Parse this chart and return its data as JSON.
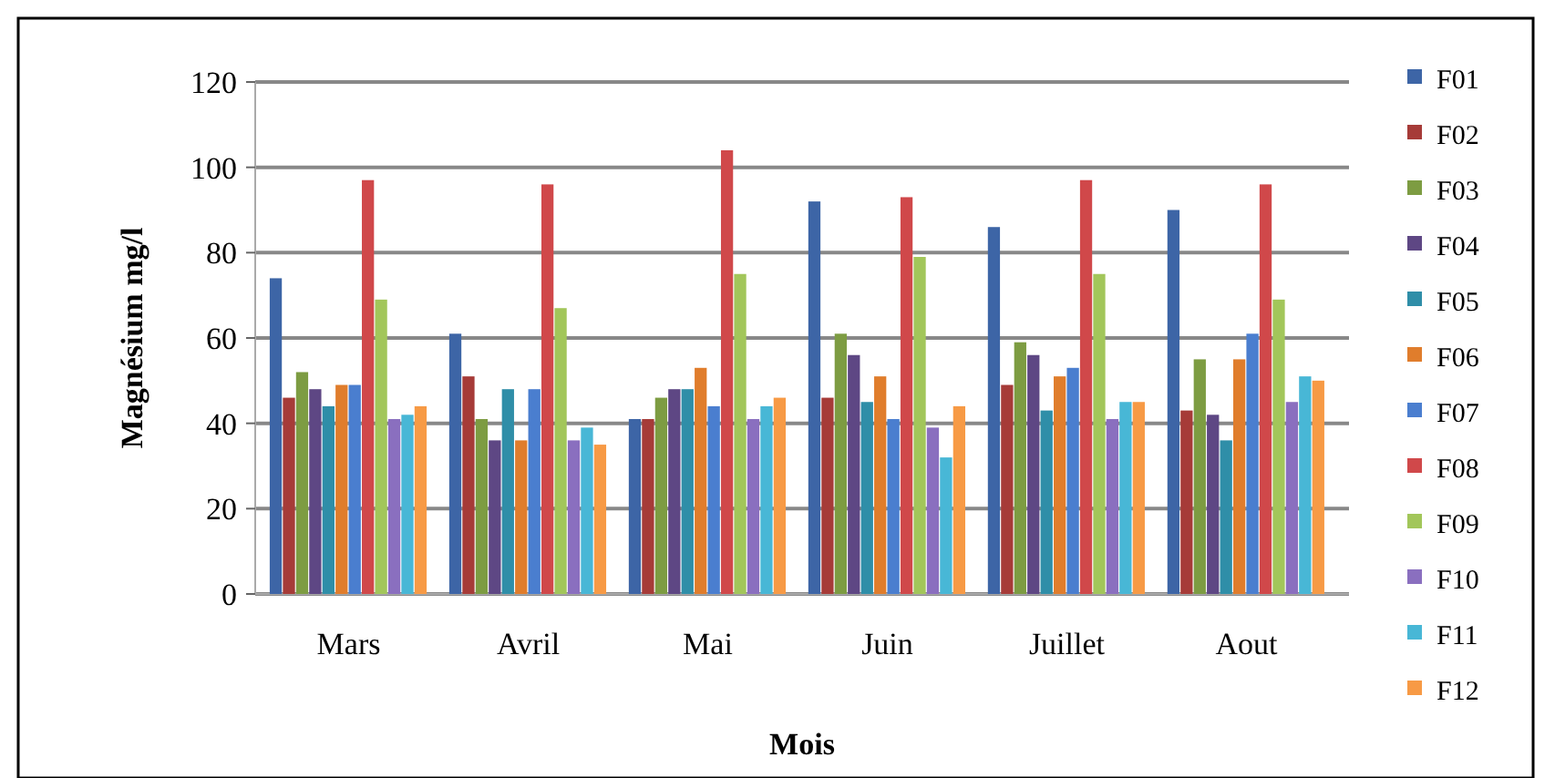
{
  "chart_data": {
    "type": "bar",
    "xlabel": "Mois",
    "ylabel": "Magnésium mg/l",
    "categories": [
      "Mars",
      "Avril",
      "Mai",
      "Juin",
      "Juillet",
      "Aout"
    ],
    "series": [
      {
        "name": "F01",
        "color": "#3d65a6",
        "values": [
          74,
          61,
          41,
          92,
          86,
          90
        ]
      },
      {
        "name": "F02",
        "color": "#a63b38",
        "values": [
          46,
          51,
          41,
          46,
          49,
          43
        ]
      },
      {
        "name": "F03",
        "color": "#7d9c42",
        "values": [
          52,
          41,
          46,
          61,
          59,
          55
        ]
      },
      {
        "name": "F04",
        "color": "#5e4784",
        "values": [
          48,
          36,
          48,
          56,
          56,
          42
        ]
      },
      {
        "name": "F05",
        "color": "#2f8ea8",
        "values": [
          44,
          48,
          48,
          45,
          43,
          36
        ]
      },
      {
        "name": "F06",
        "color": "#e07d2c",
        "values": [
          49,
          36,
          53,
          51,
          51,
          55
        ]
      },
      {
        "name": "F07",
        "color": "#4a7ecf",
        "values": [
          49,
          48,
          44,
          41,
          53,
          61
        ]
      },
      {
        "name": "F08",
        "color": "#d0484a",
        "values": [
          97,
          96,
          104,
          93,
          97,
          96
        ]
      },
      {
        "name": "F09",
        "color": "#a2c65a",
        "values": [
          69,
          67,
          75,
          79,
          75,
          69
        ]
      },
      {
        "name": "F10",
        "color": "#8a6fbf",
        "values": [
          41,
          36,
          41,
          39,
          41,
          45
        ]
      },
      {
        "name": "F11",
        "color": "#48b7d6",
        "values": [
          42,
          39,
          44,
          32,
          45,
          51
        ]
      },
      {
        "name": "F12",
        "color": "#f79a45",
        "values": [
          44,
          35,
          46,
          44,
          45,
          50
        ]
      }
    ],
    "ylim": [
      0,
      120
    ],
    "yticks": [
      0,
      20,
      40,
      60,
      80,
      100,
      120
    ],
    "grid": "y",
    "legend": "right"
  }
}
